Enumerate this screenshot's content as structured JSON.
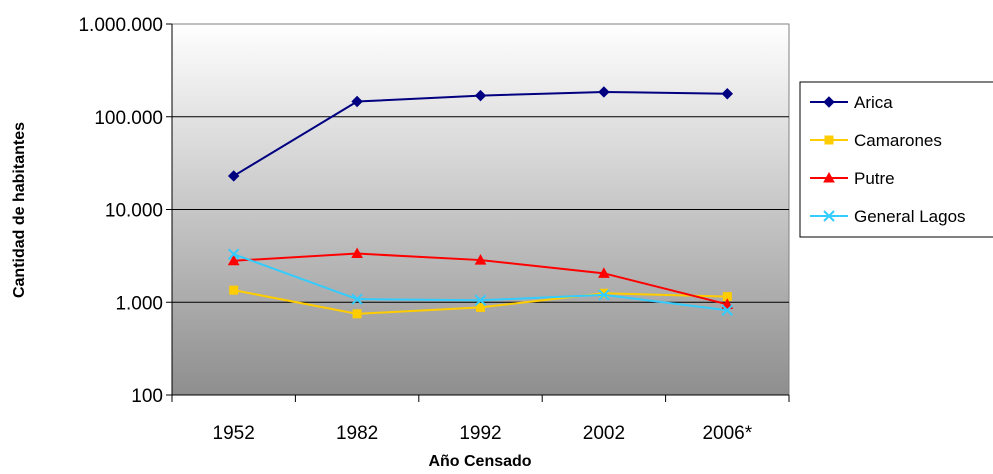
{
  "chart_data": {
    "type": "line",
    "xlabel": "Año Censado",
    "ylabel": "Cantidad de habitantes",
    "categories": [
      "1952",
      "1982",
      "1992",
      "2002",
      "2006*"
    ],
    "y_scale": "log",
    "ylim": [
      100,
      1000000
    ],
    "y_ticks": [
      {
        "value": 100,
        "label": "100"
      },
      {
        "value": 1000,
        "label": "1.000"
      },
      {
        "value": 10000,
        "label": "10.000"
      },
      {
        "value": 100000,
        "label": "100.000"
      },
      {
        "value": 1000000,
        "label": "1.000.000"
      }
    ],
    "grid": true,
    "legend_position": "right",
    "series": [
      {
        "name": "Arica",
        "color": "#000080",
        "marker": "diamond",
        "values": [
          23000,
          146000,
          169000,
          185000,
          177000
        ]
      },
      {
        "name": "Camarones",
        "color": "#FFCC00",
        "marker": "square",
        "values": [
          1350,
          750,
          880,
          1250,
          1150
        ]
      },
      {
        "name": "Putre",
        "color": "#FF0000",
        "marker": "triangle",
        "values": [
          2800,
          3350,
          2850,
          2050,
          950
        ]
      },
      {
        "name": "General Lagos",
        "color": "#33CCFF",
        "marker": "x",
        "values": [
          3300,
          1080,
          1050,
          1200,
          820
        ]
      }
    ]
  }
}
